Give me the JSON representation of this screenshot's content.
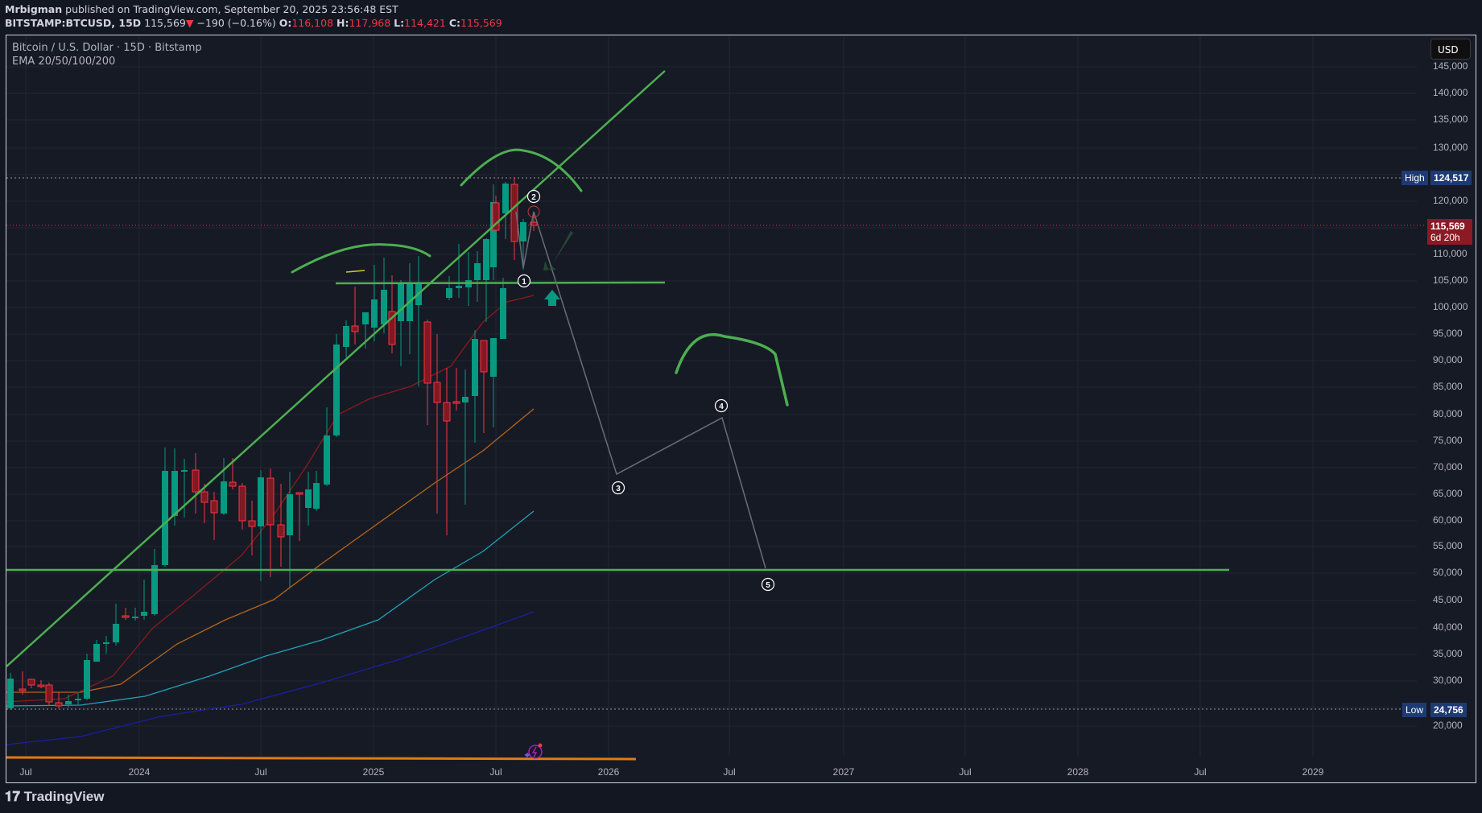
{
  "header": {
    "author": "Mrbigman",
    "published_text": " published on TradingView.com, September 20, 2025 23:56:48 EST",
    "symbol": "BITSTAMP:BTCUSD, 15D",
    "last": "115,569",
    "change_arrow": "▼",
    "change": "−190 (−0.16%)",
    "o_label": "O:",
    "o": "116,108",
    "h_label": "H:",
    "h": "117,968",
    "l_label": "L:",
    "l": "114,421",
    "c_label": "C:",
    "c": "115,569"
  },
  "legend": {
    "title": "Bitcoin / U.S. Dollar · 15D · Bitstamp",
    "indicator": "EMA 20/50/100/200"
  },
  "currency_button": "USD",
  "price_axis": [
    "145,000",
    "140,000",
    "135,000",
    "130,000",
    "120,000",
    "110,000",
    "105,000",
    "100,000",
    "95,000",
    "90,000",
    "85,000",
    "80,000",
    "75,000",
    "70,000",
    "65,000",
    "60,000",
    "55,000",
    "50,000",
    "45,000",
    "40,000",
    "35,000",
    "30,000",
    "20,000"
  ],
  "time_axis": [
    "Jul",
    "2024",
    "Jul",
    "2025",
    "Jul",
    "2026",
    "Jul",
    "2027",
    "Jul",
    "2028",
    "Jul",
    "2029"
  ],
  "tags": {
    "high_label": "High",
    "high_value": "124,517",
    "low_label": "Low",
    "low_value": "24,756",
    "price_value": "115,569",
    "countdown": "6d 20h"
  },
  "annotations": {
    "wave_labels": [
      "1",
      "2",
      "3",
      "4",
      "5"
    ]
  },
  "footer": {
    "brand": "TradingView"
  },
  "colors": {
    "up": "#089981",
    "down": "#f23645",
    "drawing_green": "#4caf50",
    "ema20": "#8b1a1a",
    "ema50": "#b8651b",
    "ema100": "#1fa3b8",
    "ema200": "#1a1fa3",
    "tag_blue": "#1e3a75",
    "tag_red": "#8b1a24"
  },
  "chart_data": {
    "type": "candlestick",
    "title": "Bitcoin / U.S. Dollar · 15D · Bitstamp",
    "symbol": "BITSTAMP:BTCUSD",
    "interval": "15D",
    "xlabel": "",
    "ylabel": "USD",
    "ylim": [
      15000,
      148000
    ],
    "x_ticks": [
      "Jul 2023",
      "2024",
      "Jul 2024",
      "2025",
      "Jul 2025",
      "2026",
      "Jul 2026",
      "2027",
      "Jul 2027",
      "2028",
      "Jul 2028",
      "2029"
    ],
    "last_bar": {
      "open": 116108,
      "high": 117968,
      "low": 114421,
      "close": 115569,
      "change": -190,
      "change_pct": -0.16
    },
    "high_marker": 124517,
    "low_marker": 24756,
    "indicators": [
      "EMA 20",
      "EMA 50",
      "EMA 100",
      "EMA 200"
    ],
    "ema_end_values_approx": {
      "ema20": 102000,
      "ema50": 81000,
      "ema100": 62000,
      "ema200": 43000
    },
    "drawings": {
      "ascending_trendline": "from ~33,000 (mid-2023) to ~144,000 (early 2026)",
      "horizontal_support": 104500,
      "horizontal_support_2": 51000,
      "elliott_wave_projection": [
        {
          "label": "1",
          "price": 107000
        },
        {
          "label": "2",
          "price": 118000
        },
        {
          "label": "3",
          "price": 69000
        },
        {
          "label": "4",
          "price": 79000
        },
        {
          "label": "5",
          "price": 51000
        }
      ]
    },
    "grid": true,
    "scale": "near-linear/log"
  }
}
